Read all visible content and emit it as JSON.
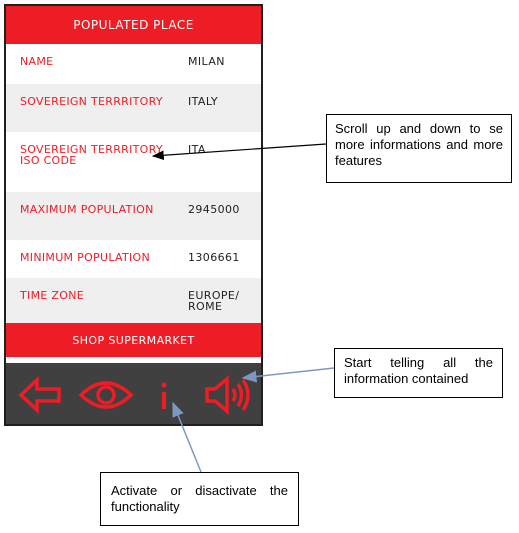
{
  "header": {
    "title": "POPULATED PLACE"
  },
  "rows": [
    {
      "label": "NAME",
      "value": "MILAN"
    },
    {
      "label": "SOVEREIGN TERRRITORY",
      "value": "ITALY"
    },
    {
      "label": "SOVEREIGN TERRRITORY ISO CODE",
      "value": "ITA"
    },
    {
      "label": "MAXIMUM POPULATION",
      "value": "2945000"
    },
    {
      "label": "MINIMUM POPULATION",
      "value": "1306661"
    },
    {
      "label": "TIME ZONE",
      "value": "EUROPE/ ROME"
    }
  ],
  "footer": {
    "button_label": "SHOP SUPERMARKET"
  },
  "toolbar": {
    "icons": [
      "back-arrow-icon",
      "eye-icon",
      "info-icon",
      "speaker-icon"
    ],
    "icon_color": "#ee1c25",
    "background": "#404040"
  },
  "callouts": {
    "scroll": "Scroll up and down to se more informations and more features",
    "speak": "Start telling all the information contained",
    "toggle": "Activate or disactivate the functionality"
  },
  "colors": {
    "accent": "#ee1c25",
    "row_alt": "#efefef"
  }
}
